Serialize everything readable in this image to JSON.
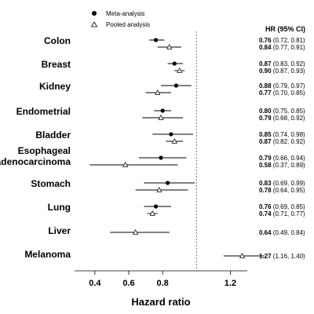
{
  "chart_data": {
    "type": "forest",
    "title": "",
    "xlabel": "Hazard ratio",
    "ylabel": "",
    "xlim": [
      0.28,
      1.3
    ],
    "xticks": [
      "0.4",
      "0.6",
      "0.8",
      "1.2"
    ],
    "xtick_values": [
      0.4,
      0.6,
      0.8,
      1.2
    ],
    "reference_line": 1.0,
    "legend": {
      "placement": "top-left",
      "entries": [
        "Meta-analysis",
        "Pooled analysis"
      ]
    },
    "hr_column_header": "HR (95% CI)",
    "series": [
      {
        "name": "Meta-analysis",
        "marker": "filled-circle"
      },
      {
        "name": "Pooled analysis",
        "marker": "open-triangle"
      }
    ],
    "categories": [
      {
        "label": "Colon",
        "meta": {
          "hr": 0.76,
          "low": 0.72,
          "high": 0.81,
          "text": "0.76 (0.72, 0.81)"
        },
        "pooled": {
          "hr": 0.84,
          "low": 0.77,
          "high": 0.91,
          "text": "0.84 (0.77, 0.91)"
        }
      },
      {
        "label": "Breast",
        "meta": {
          "hr": 0.87,
          "low": 0.83,
          "high": 0.92,
          "text": "0.87 (0.83, 0.92)"
        },
        "pooled": {
          "hr": 0.9,
          "low": 0.87,
          "high": 0.93,
          "text": "0.90 (0.87, 0.93)"
        }
      },
      {
        "label": "Kidney",
        "meta": {
          "hr": 0.88,
          "low": 0.79,
          "high": 0.97,
          "text": "0.88 (0.79, 0.97)"
        },
        "pooled": {
          "hr": 0.77,
          "low": 0.7,
          "high": 0.85,
          "text": "0.77 (0.70, 0.85)"
        }
      },
      {
        "label": "Endometrial",
        "meta": {
          "hr": 0.8,
          "low": 0.75,
          "high": 0.85,
          "text": "0.80 (0.75, 0.85)"
        },
        "pooled": {
          "hr": 0.79,
          "low": 0.68,
          "high": 0.92,
          "text": "0.79 (0.68, 0.92)"
        }
      },
      {
        "label": "Bladder",
        "meta": {
          "hr": 0.85,
          "low": 0.74,
          "high": 0.98,
          "text": "0.85 (0.74, 0.98)"
        },
        "pooled": {
          "hr": 0.87,
          "low": 0.82,
          "high": 0.92,
          "text": "0.87 (0.82, 0.92)"
        }
      },
      {
        "label": "Esophageal",
        "label2": "adenocarcinoma",
        "meta": {
          "hr": 0.79,
          "low": 0.66,
          "high": 0.94,
          "text": "0.79 (0.66, 0.94)"
        },
        "pooled": {
          "hr": 0.58,
          "low": 0.37,
          "high": 0.89,
          "text": "0.58 (0.37, 0.89)"
        }
      },
      {
        "label": "Stomach",
        "meta": {
          "hr": 0.83,
          "low": 0.69,
          "high": 0.99,
          "text": "0.83 (0.69, 0.99)"
        },
        "pooled": {
          "hr": 0.78,
          "low": 0.64,
          "high": 0.95,
          "text": "0.78 (0.64, 0.95)"
        }
      },
      {
        "label": "Lung",
        "meta": {
          "hr": 0.76,
          "low": 0.69,
          "high": 0.85,
          "text": "0.76 (0.69, 0.85)"
        },
        "pooled": {
          "hr": 0.74,
          "low": 0.71,
          "high": 0.77,
          "text": "0.74 (0.71, 0.77)"
        }
      },
      {
        "label": "Liver",
        "meta": null,
        "pooled": {
          "hr": 0.64,
          "low": 0.49,
          "high": 0.84,
          "text": "0.64 (0.49, 0.84)"
        }
      },
      {
        "label": "Melanoma",
        "meta": null,
        "pooled": {
          "hr": 1.27,
          "low": 1.16,
          "high": 1.4,
          "text": "1.27 (1.16, 1.40)"
        }
      }
    ]
  }
}
